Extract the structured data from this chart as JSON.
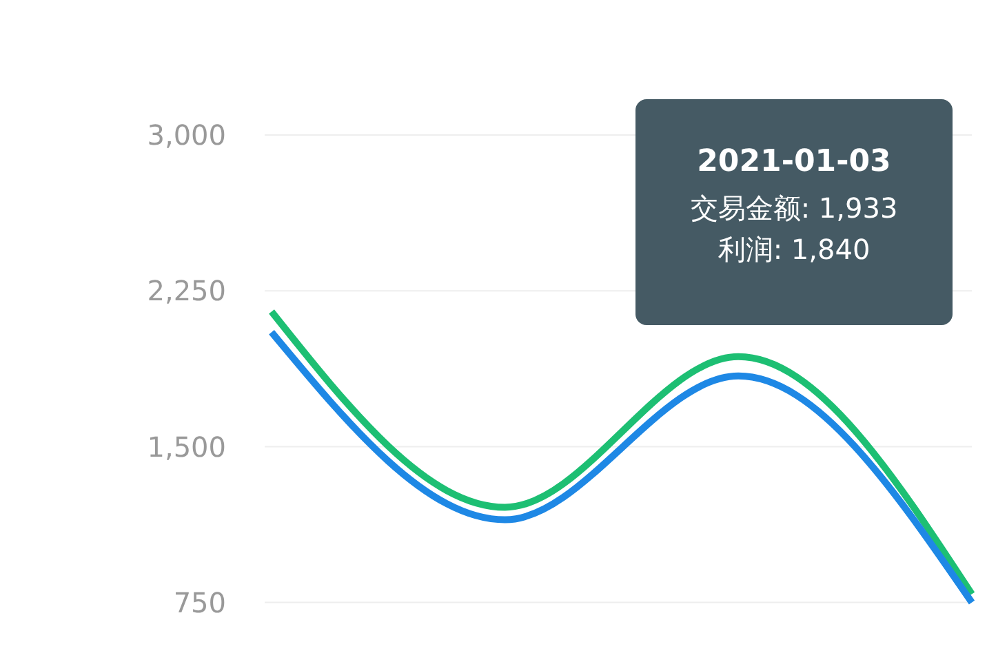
{
  "chart_data": {
    "type": "line",
    "categories": [
      null,
      null,
      null,
      null
    ],
    "series": [
      {
        "color": "#1dbf73",
        "values": [
          2150,
          1208,
          1933,
          790
        ]
      },
      {
        "color": "#1e88e5",
        "values": [
          2051,
          1148,
          1840,
          750
        ]
      }
    ],
    "ylim": [
      500,
      3000
    ],
    "yticks": [
      750,
      {
        "value": 1500,
        "label": "1,500"
      },
      {
        "value": 2250,
        "label": "2,250"
      },
      {
        "value": 3000,
        "label": "3,000"
      }
    ],
    "grid": "y",
    "marker": "none",
    "line_style": "solid",
    "tick_labels": "y",
    "annotations": [
      "2021-01-03",
      "交易金额: 1,933",
      "利润: 1,840"
    ]
  }
}
